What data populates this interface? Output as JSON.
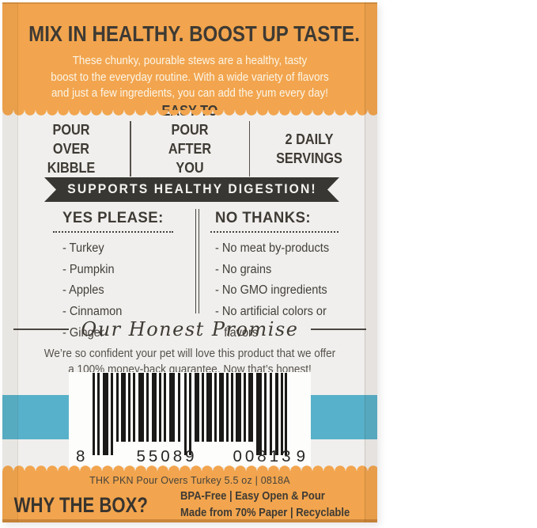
{
  "header": {
    "title": "MIX IN HEALTHY. BOOST UP TASTE.",
    "desc": [
      "These chunky, pourable stews are a healthy, tasty",
      "boost to the everyday routine. With a wide variety of flavors",
      "and just a few ingredients, you can add the yum every day!"
    ]
  },
  "features": {
    "items": [
      "POUR OVER KIBBLE",
      "EASY TO POUR AFTER YOU STORE",
      "2 DAILY SERVINGS"
    ]
  },
  "banner": {
    "text": "SUPPORTS HEALTHY DIGESTION!"
  },
  "lists": {
    "yes": {
      "title": "YES PLEASE:",
      "items": [
        "Turkey",
        "Pumpkin",
        "Apples",
        "Cinnamon",
        "Ginger"
      ]
    },
    "no": {
      "title": "NO THANKS:",
      "items": [
        "No meat by-products",
        "No grains",
        "No GMO ingredients",
        "No artificial colors or flavors"
      ]
    }
  },
  "promise": {
    "title": "Our Honest Promise",
    "body": [
      "We’re so confident your pet will love this product that we offer",
      "a 100% money-back guarantee. Now that’s honest!"
    ]
  },
  "barcode": {
    "digit_left": "8",
    "group1": "55089",
    "group2": "00813",
    "digit_right": "9"
  },
  "footer": {
    "product_code": "THK PKN Pour Overs Turkey 5.5 oz | 0818A",
    "why_title": "WHY THE BOX?",
    "benefits": [
      "BPA-Free | Easy Open & Pour",
      "Made from 70% Paper | Recyclable"
    ]
  },
  "colors": {
    "orange": "#F2A54E",
    "panel": "#F0EFED",
    "charcoal": "#3E3A34",
    "banner_bg": "#393733",
    "blue_stripe": "#58B1CA",
    "barcode_label": "#FDFDFC"
  }
}
